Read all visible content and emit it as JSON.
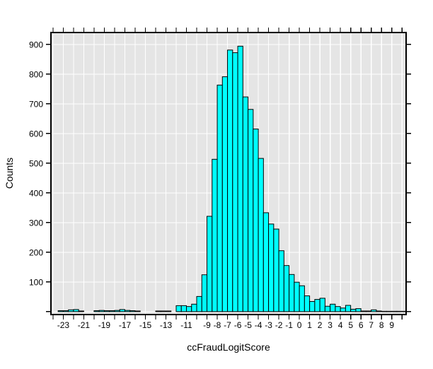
{
  "chart_data": {
    "type": "bar",
    "subtype": "histogram",
    "title": "",
    "xlabel": "ccFraudLogitScore",
    "ylabel": "Counts",
    "bin_width": 0.5,
    "bin_left_edges": [
      -23.5,
      -23,
      -22.5,
      -22,
      -21.5,
      -20,
      -19.5,
      -19,
      -18.5,
      -18,
      -17.5,
      -17,
      -16.5,
      -16,
      -14,
      -13.5,
      -13,
      -12,
      -11.5,
      -11,
      -10.5,
      -10,
      -9.5,
      -9,
      -8.5,
      -8,
      -7.5,
      -7,
      -6.5,
      -6,
      -5.5,
      -5,
      -4.5,
      -4,
      -3.5,
      -3,
      -2.5,
      -2,
      -1.5,
      -1,
      -0.5,
      0,
      0.5,
      1,
      1.5,
      2,
      2.5,
      3,
      3.5,
      4,
      4.5,
      5,
      5.5,
      6,
      6.5,
      7,
      7.5,
      8,
      8.5,
      9,
      9.5,
      10
    ],
    "counts": [
      3,
      3,
      6,
      7,
      2,
      3,
      4,
      3,
      3,
      4,
      7,
      4,
      3,
      2,
      2,
      2,
      2,
      20,
      20,
      17,
      25,
      51,
      124,
      321,
      513,
      763,
      791,
      881,
      872,
      894,
      723,
      681,
      615,
      516,
      333,
      295,
      278,
      205,
      155,
      125,
      99,
      87,
      53,
      34,
      41,
      45,
      18,
      25,
      17,
      12,
      21,
      8,
      10,
      2,
      2,
      6,
      2,
      1,
      1,
      1,
      1,
      1
    ],
    "x_axis": {
      "range": [
        -24.2,
        10.4
      ],
      "ticks": {
        "start": -24,
        "end": 10,
        "step": 1
      },
      "label_values": [
        -23,
        -21,
        -19,
        -17,
        -15,
        -13,
        -11,
        -9,
        -8,
        -7,
        -6,
        -5,
        -4,
        -3,
        -2,
        -1,
        0,
        1,
        2,
        3,
        4,
        5,
        6,
        7,
        8,
        9
      ],
      "labels": [
        "-23",
        "-21",
        "-19",
        "-17",
        "-15",
        "-13",
        "-11",
        "-9",
        "-8",
        "-7",
        "-6",
        "-5",
        "-4",
        "-3",
        "-2",
        "-1",
        "0",
        "1",
        "2",
        "3",
        "4",
        "5",
        "6",
        "7",
        "8",
        "9"
      ]
    },
    "y_axis": {
      "range": [
        -10,
        940
      ],
      "ticks": [
        0,
        100,
        200,
        300,
        400,
        500,
        600,
        700,
        800,
        900
      ],
      "label_values": [
        100,
        200,
        300,
        400,
        500,
        600,
        700,
        800,
        900
      ],
      "labels": [
        "100",
        "200",
        "300",
        "400",
        "500",
        "600",
        "700",
        "800",
        "900"
      ]
    },
    "grid": true,
    "legend": false,
    "colors": {
      "bar_fill": "#00ffff",
      "bar_border": "#000000",
      "plot_background": "#e5e5e5",
      "gridline": "#ffffff",
      "frame": "#000000",
      "tick": "#000000",
      "text": "#000000",
      "page_background": "#ffffff"
    }
  }
}
